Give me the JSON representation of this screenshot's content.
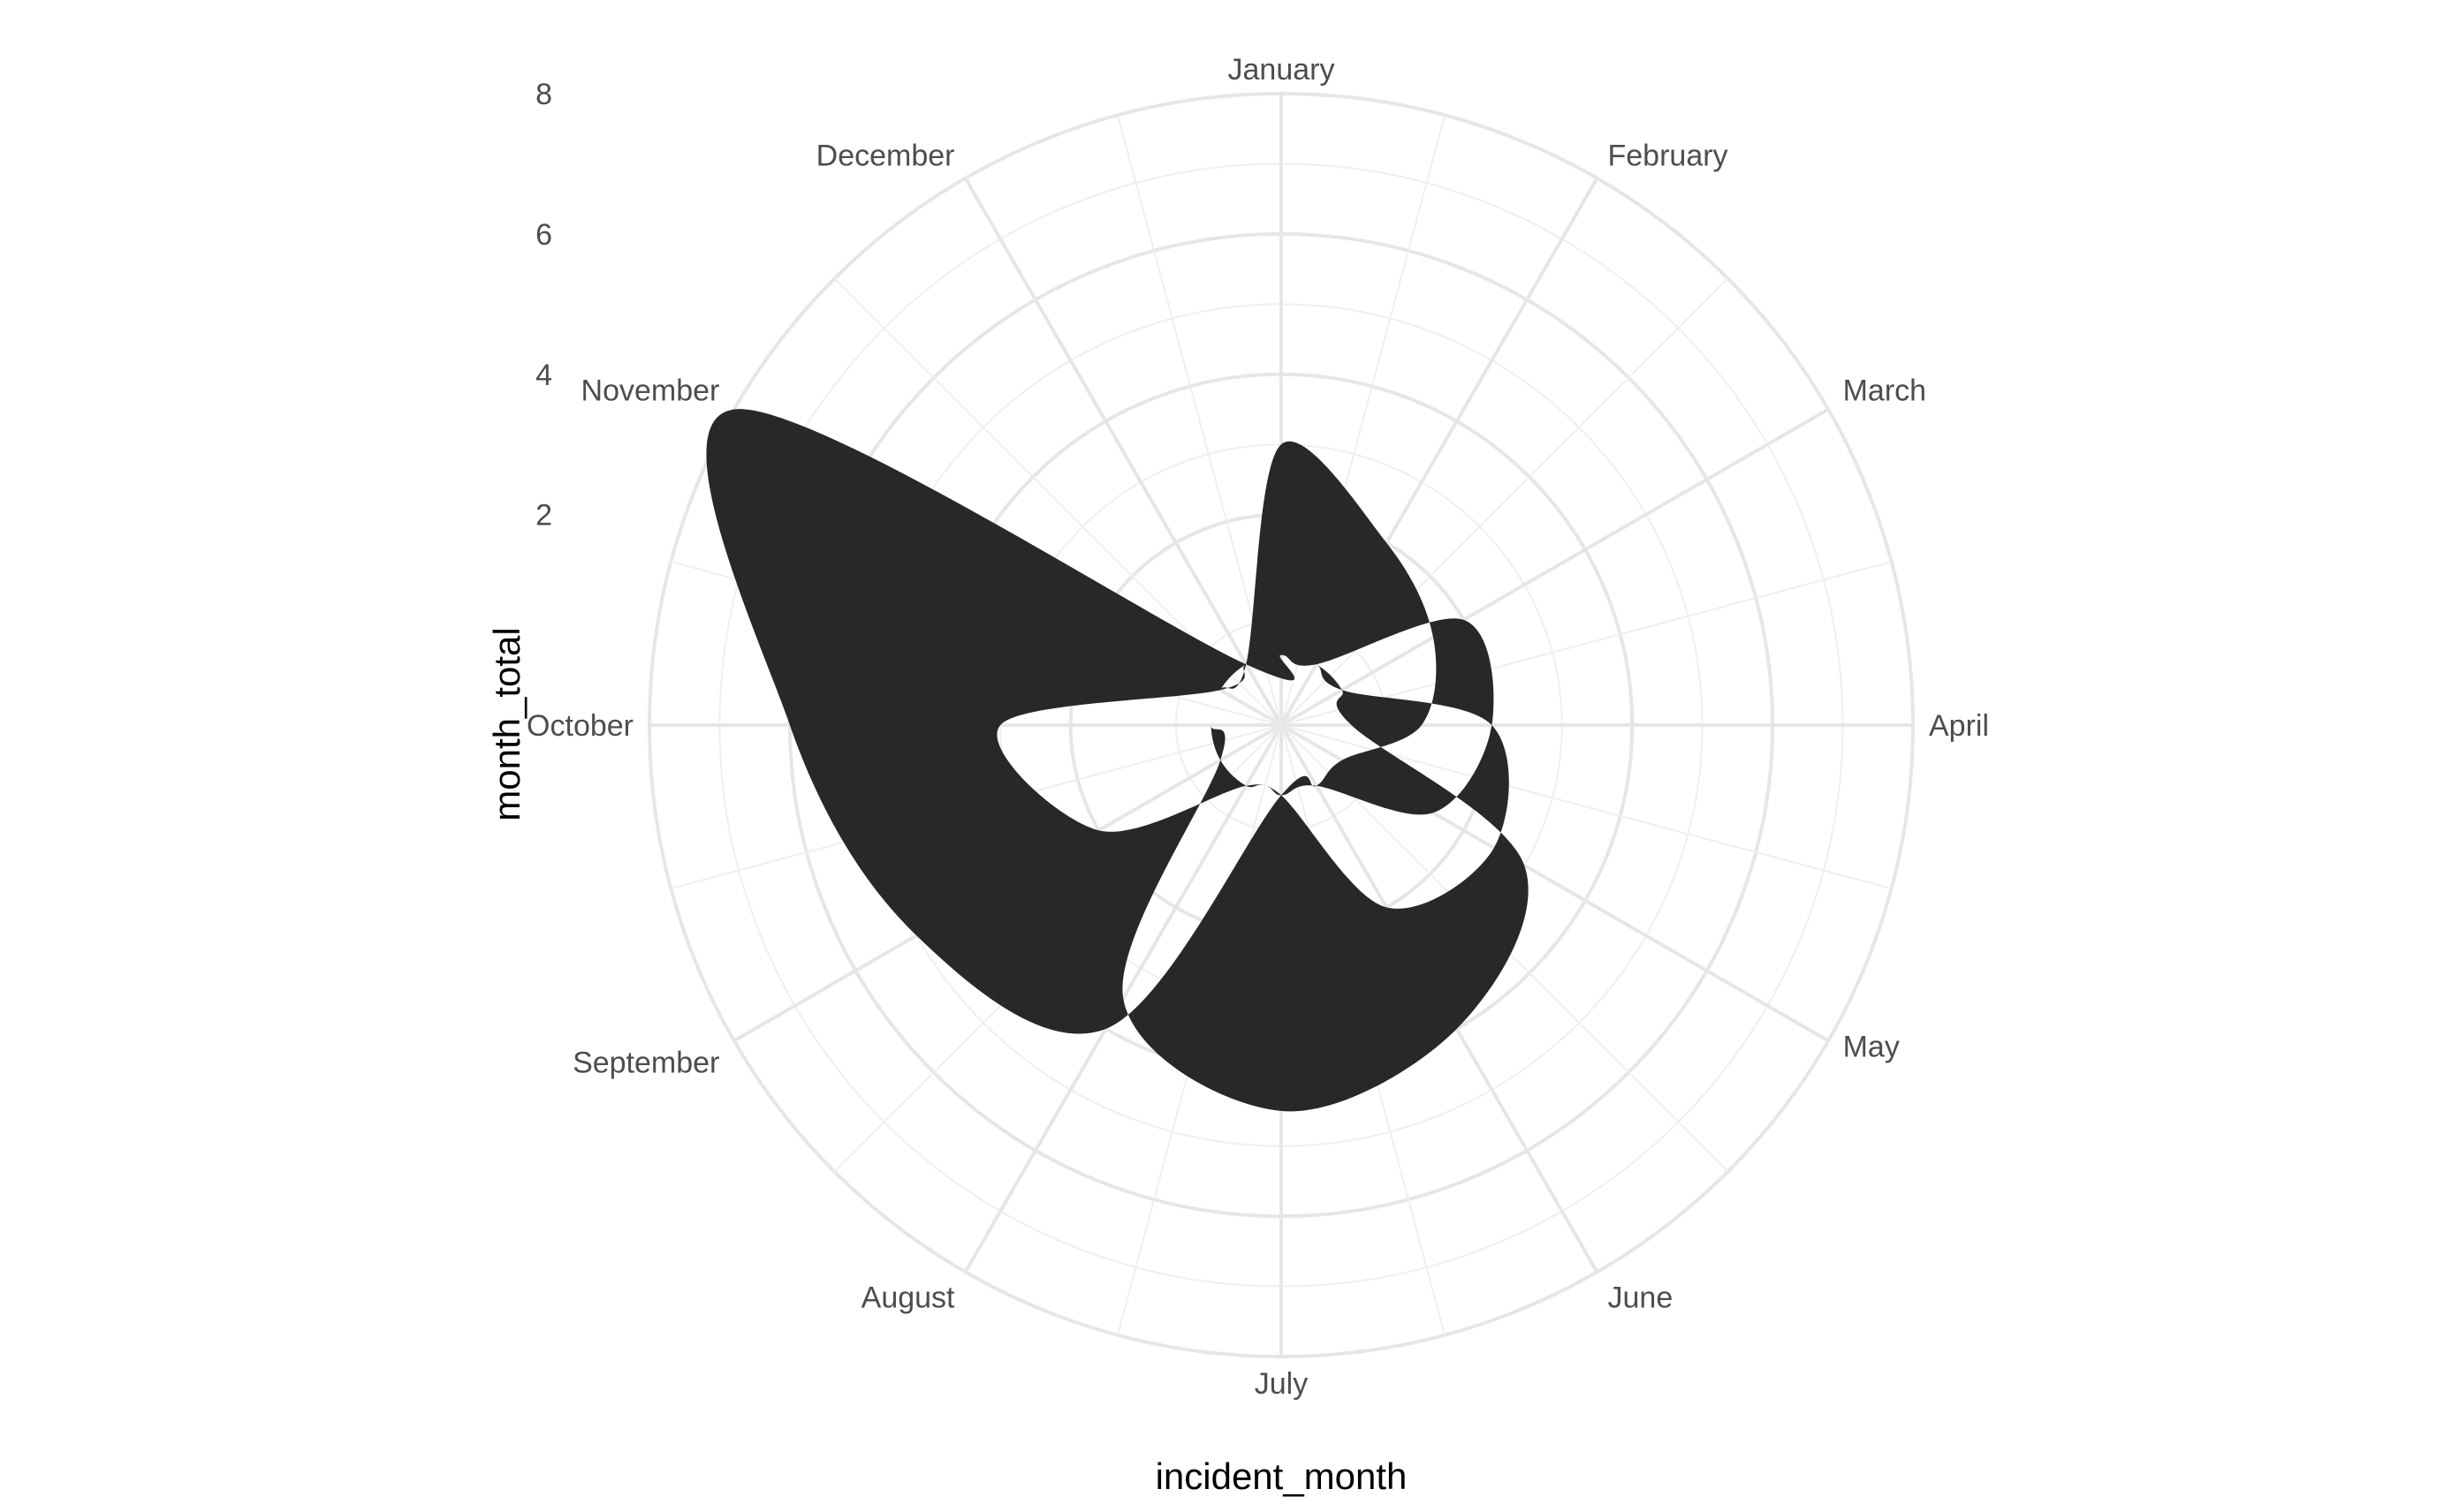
{
  "chart_data": {
    "type": "area",
    "coord": "polar",
    "xlabel": "incident_month",
    "ylabel": "month_total",
    "categories": [
      "January",
      "February",
      "March",
      "April",
      "May",
      "June",
      "July",
      "August",
      "September",
      "October",
      "November",
      "December"
    ],
    "r_ticks": [
      2,
      4,
      6,
      8
    ],
    "ylim": [
      -1,
      8
    ],
    "grid": true,
    "fill_color": "#282828",
    "series": [
      {
        "values": [
          3,
          2,
          1.5,
          1,
          0,
          0,
          0,
          0,
          0,
          0,
          0,
          0
        ]
      },
      {
        "values": [
          0,
          0,
          2,
          2,
          1.5,
          0,
          0,
          0,
          0,
          0,
          0,
          0
        ]
      },
      {
        "values": [
          0,
          0,
          0,
          2,
          2.5,
          2,
          0,
          0,
          0,
          0,
          0,
          0
        ]
      },
      {
        "values": [
          0,
          0,
          0,
          0,
          3,
          4,
          4.5,
          3.5,
          0,
          0,
          0,
          0
        ]
      },
      {
        "values": [
          0,
          0,
          0,
          0,
          0,
          0,
          0,
          4,
          5,
          6,
          8,
          0
        ]
      },
      {
        "values": [
          0,
          0,
          0,
          0,
          0,
          0,
          0,
          0,
          2,
          3,
          0,
          0
        ]
      }
    ]
  }
}
